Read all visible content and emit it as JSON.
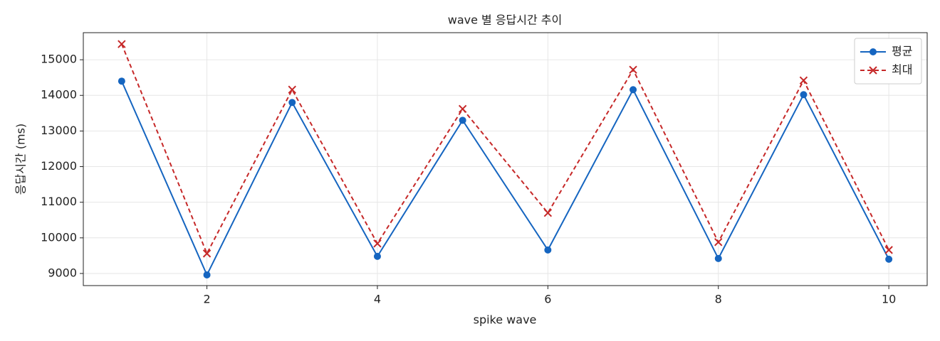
{
  "chart_data": {
    "type": "line",
    "title": "wave 별 응답시간 추이",
    "xlabel": "spike wave",
    "ylabel": "응답시간 (ms)",
    "x": [
      1,
      2,
      3,
      4,
      5,
      6,
      7,
      8,
      9,
      10
    ],
    "series": [
      {
        "name": "평균",
        "color": "#1565c0",
        "marker": "circle",
        "linestyle": "solid",
        "values": [
          14400,
          8960,
          13800,
          9480,
          13300,
          9660,
          14160,
          9420,
          14020,
          9400
        ]
      },
      {
        "name": "최대",
        "color": "#c62828",
        "marker": "x",
        "linestyle": "dashed",
        "values": [
          15440,
          9560,
          14160,
          9840,
          13620,
          10700,
          14720,
          9880,
          14420,
          9660
        ]
      }
    ],
    "xlim": [
      0.55,
      10.45
    ],
    "xticks": [
      2,
      4,
      6,
      8,
      10
    ],
    "ylim": [
      8660,
      15760
    ],
    "yticks": [
      9000,
      10000,
      11000,
      12000,
      13000,
      14000,
      15000
    ],
    "grid": true,
    "legend": "upper-right"
  }
}
